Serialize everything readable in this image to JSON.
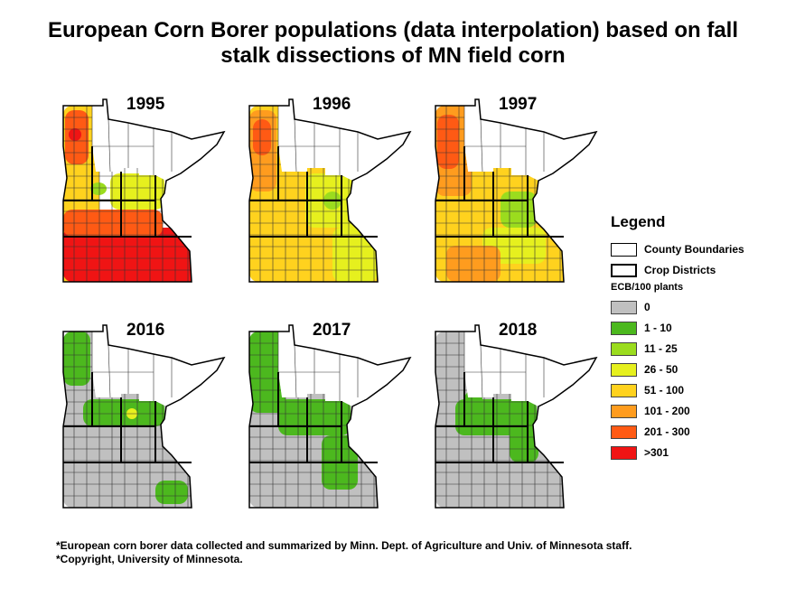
{
  "title_line1": "European Corn Borer populations (data interpolation) based on fall",
  "title_line2": "stalk dissections of MN field corn",
  "maps": [
    {
      "year": "1995",
      "palette": "high"
    },
    {
      "year": "1996",
      "palette": "med"
    },
    {
      "year": "1997",
      "palette": "med2"
    },
    {
      "year": "2016",
      "palette": "low"
    },
    {
      "year": "2017",
      "palette": "low2"
    },
    {
      "year": "2018",
      "palette": "low3"
    }
  ],
  "legend": {
    "title": "Legend",
    "county_label": "County Boundaries",
    "district_label": "Crop Districts",
    "subtitle": "ECB/100 plants",
    "classes": [
      {
        "label": "0",
        "color": "#c0c0c0"
      },
      {
        "label": "1 - 10",
        "color": "#4cb81e"
      },
      {
        "label": "11 - 25",
        "color": "#9bdc1e"
      },
      {
        "label": "26 - 50",
        "color": "#e6f01e"
      },
      {
        "label": "51 - 100",
        "color": "#ffd21e"
      },
      {
        "label": "101 - 200",
        "color": "#ff9c1e"
      },
      {
        "label": "201 - 300",
        "color": "#ff5a14"
      },
      {
        "label": ">301",
        "color": "#f01414"
      }
    ]
  },
  "footnote_line1": "*European corn borer data collected and summarized by Minn. Dept. of Agriculture and Univ. of Minnesota staff.",
  "footnote_line2": "*Copyright, University of Minnesota."
}
